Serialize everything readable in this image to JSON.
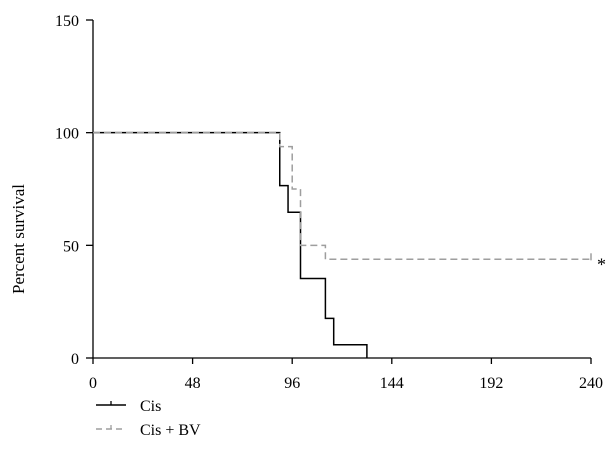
{
  "chart_data": {
    "type": "line",
    "title": "",
    "xlabel": "",
    "ylabel": "Percent survival",
    "xlim": [
      0,
      240
    ],
    "ylim": [
      0,
      150
    ],
    "x_ticks": [
      0,
      48,
      96,
      144,
      192,
      240
    ],
    "y_ticks": [
      0,
      50,
      100,
      150
    ],
    "grid": false,
    "legend_position": "bottom-left",
    "series": [
      {
        "name": "Cis",
        "style": "step",
        "color": "#000000",
        "dash": "solid",
        "x": [
          0,
          90,
          94,
          100,
          112,
          116,
          132
        ],
        "y": [
          100,
          76.5,
          64.7,
          35.3,
          17.6,
          5.9,
          0
        ],
        "censor": []
      },
      {
        "name": "Cis + BV",
        "style": "step",
        "color": "#9e9e9e",
        "dash": "dashed",
        "x": [
          0,
          90,
          96,
          100,
          112,
          240
        ],
        "y": [
          100,
          93.8,
          75,
          50,
          43.8,
          43.8
        ],
        "censor": [
          [
            240,
            43.8
          ]
        ]
      }
    ],
    "annotations": [
      {
        "text": "*",
        "x": 240,
        "y": 43.8
      }
    ]
  }
}
